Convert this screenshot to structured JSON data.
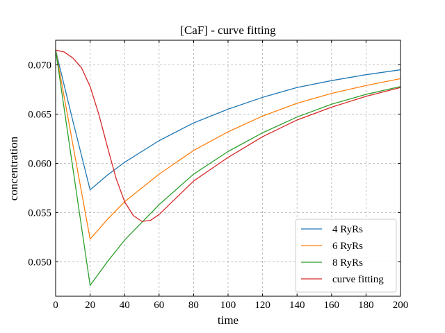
{
  "chart_data": {
    "type": "line",
    "title": "[CaF] - curve fitting",
    "xlabel": "time",
    "ylabel": "concentration",
    "xlim": [
      0,
      200
    ],
    "ylim": [
      0.0465,
      0.0725
    ],
    "x_ticks": [
      0,
      20,
      40,
      60,
      80,
      100,
      120,
      140,
      160,
      180,
      200
    ],
    "y_ticks": [
      0.05,
      0.055,
      0.06,
      0.065,
      0.07
    ],
    "y_tick_labels": [
      "0.050",
      "0.055",
      "0.060",
      "0.065",
      "0.070"
    ],
    "grid": true,
    "legend_position": "lower-right",
    "series": [
      {
        "name": "4 RyRs",
        "color": "#1f77b4",
        "x": [
          0,
          10,
          20,
          30,
          40,
          60,
          80,
          100,
          120,
          140,
          160,
          180,
          200
        ],
        "y": [
          0.0715,
          0.0643,
          0.0573,
          0.0588,
          0.0601,
          0.0623,
          0.0641,
          0.0655,
          0.0667,
          0.0677,
          0.0684,
          0.069,
          0.0695
        ]
      },
      {
        "name": "6 RyRs",
        "color": "#ff7f0e",
        "x": [
          0,
          10,
          20,
          30,
          40,
          60,
          80,
          100,
          120,
          140,
          160,
          180,
          200
        ],
        "y": [
          0.0715,
          0.0619,
          0.0523,
          0.0543,
          0.0561,
          0.0589,
          0.0613,
          0.0632,
          0.0648,
          0.0661,
          0.0671,
          0.0679,
          0.0686
        ]
      },
      {
        "name": "8 RyRs",
        "color": "#2ca02c",
        "x": [
          0,
          10,
          20,
          30,
          40,
          60,
          80,
          100,
          120,
          140,
          160,
          180,
          200
        ],
        "y": [
          0.0715,
          0.0595,
          0.0476,
          0.05,
          0.0522,
          0.0558,
          0.0589,
          0.0612,
          0.0631,
          0.0647,
          0.066,
          0.067,
          0.0678
        ]
      },
      {
        "name": "curve fitting",
        "color": "#d62728",
        "x": [
          0,
          5,
          10,
          15,
          20,
          25,
          30,
          35,
          40,
          45,
          50,
          55,
          60,
          70,
          80,
          100,
          120,
          140,
          160,
          180,
          200
        ],
        "y": [
          0.0715,
          0.0713,
          0.0707,
          0.0697,
          0.0678,
          0.065,
          0.0617,
          0.0585,
          0.0561,
          0.0547,
          0.0541,
          0.0542,
          0.0548,
          0.0565,
          0.0582,
          0.0606,
          0.0627,
          0.0644,
          0.0657,
          0.0668,
          0.0677
        ]
      }
    ]
  }
}
